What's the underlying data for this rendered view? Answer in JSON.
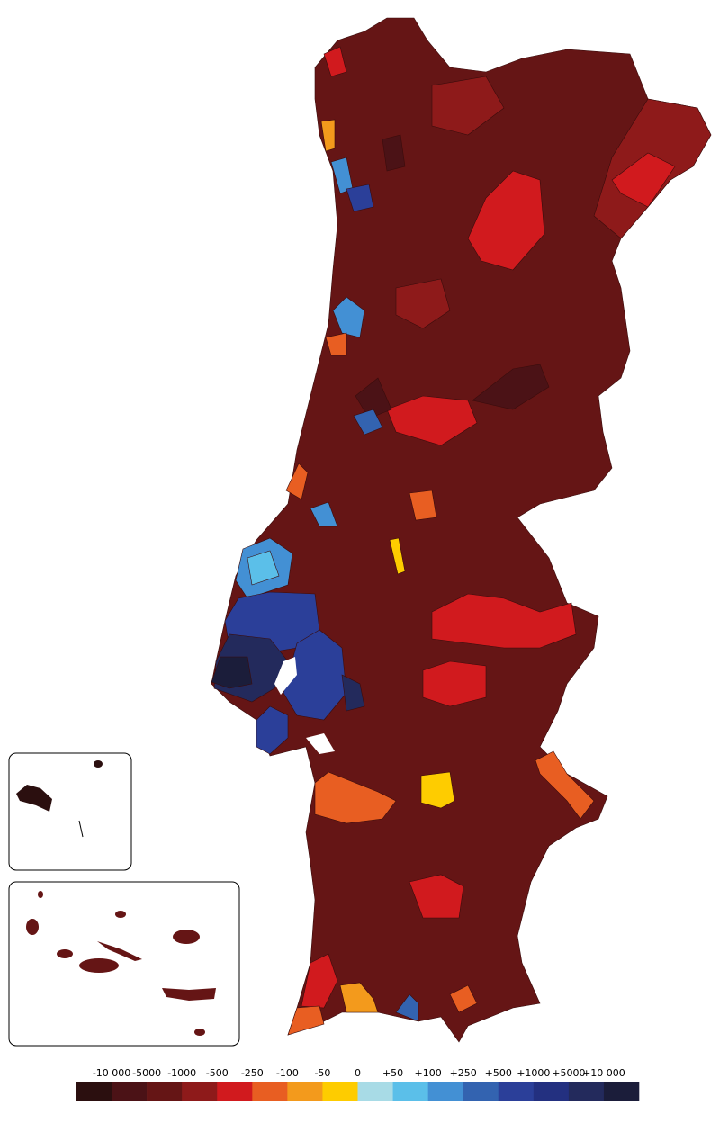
{
  "legend": {
    "labels": [
      "-10 000",
      "-5000",
      "-1000",
      "-500",
      "-250",
      "-100",
      "-50",
      "0",
      "+50",
      "+100",
      "+250",
      "+500",
      "+1000",
      "+5000",
      "+10 000"
    ],
    "colors": [
      "#2b0f0f",
      "#4b1216",
      "#651515",
      "#8e1a1a",
      "#d11a1e",
      "#e85e22",
      "#f39a1c",
      "#fecc00",
      "#a8dbe6",
      "#5bbfe9",
      "#4390d4",
      "#3363b0",
      "#2b3f99",
      "#233080",
      "#232a5c",
      "#1b1d3a"
    ]
  }
}
